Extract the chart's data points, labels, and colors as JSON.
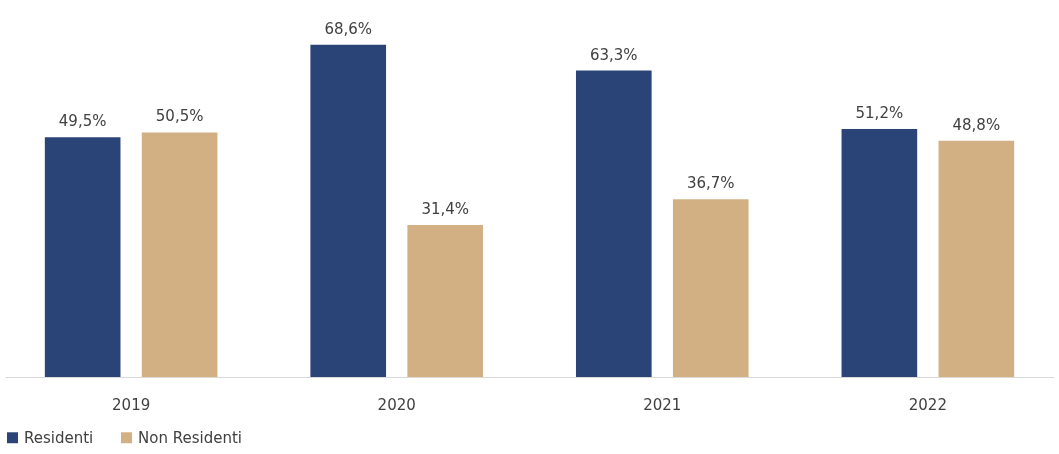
{
  "chart_data": {
    "type": "bar",
    "categories": [
      "2019",
      "2020",
      "2021",
      "2022"
    ],
    "series": [
      {
        "name": "Residenti",
        "color": "#2b4478",
        "values": [
          49.5,
          68.6,
          63.3,
          51.2
        ],
        "value_labels": [
          "49,5%",
          "68,6%",
          "63,3%",
          "51,2%"
        ]
      },
      {
        "name": "Non Residenti",
        "color": "#d3b084",
        "values": [
          50.5,
          31.4,
          36.7,
          48.8
        ],
        "value_labels": [
          "50,5%",
          "31,4%",
          "36,7%",
          "48,8%"
        ]
      }
    ],
    "legend": "bottom",
    "grid": false
  }
}
